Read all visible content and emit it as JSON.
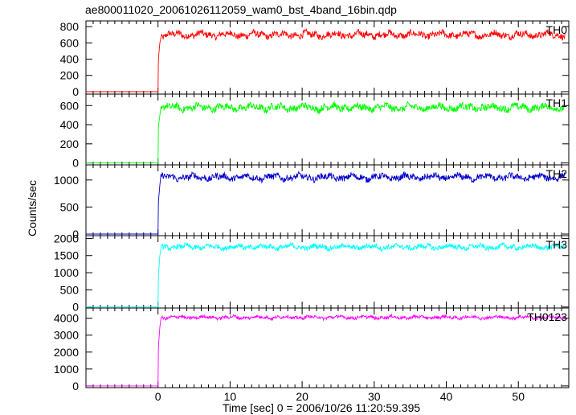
{
  "chart_data": {
    "type": "line",
    "title": "ae800011020_20061026112059_wam0_bst_4band_16bin.qdp",
    "xlabel": "Time [sec] 0 = 2006/10/26 11:20:59.395",
    "ylabel": "Counts/sec",
    "xlim": [
      -10,
      57
    ],
    "xticks": [
      0,
      10,
      20,
      30,
      40,
      50
    ],
    "grid": false,
    "panels": [
      {
        "name": "TH0",
        "color": "#ff0000",
        "ylim": [
          -30,
          870
        ],
        "yticks": [
          0,
          200,
          400,
          600,
          800
        ],
        "pre_level": 0,
        "onset_value": 400,
        "plateau": 700,
        "jitter": 55
      },
      {
        "name": "TH1",
        "color": "#00ff00",
        "ylim": [
          -20,
          720
        ],
        "yticks": [
          0,
          200,
          400,
          600
        ],
        "pre_level": 0,
        "onset_value": 380,
        "plateau": 580,
        "jitter": 50
      },
      {
        "name": "TH2",
        "color": "#0000cc",
        "ylim": [
          -30,
          1280
        ],
        "yticks": [
          0,
          500,
          1000
        ],
        "pre_level": 0,
        "onset_value": 600,
        "plateau": 1050,
        "jitter": 80
      },
      {
        "name": "TH3",
        "color": "#00ffff",
        "ylim": [
          -30,
          2080
        ],
        "yticks": [
          0,
          500,
          1000,
          1500,
          2000
        ],
        "pre_level": 0,
        "onset_value": 900,
        "plateau": 1750,
        "jitter": 100
      },
      {
        "name": "TH0123",
        "color": "#ff00ff",
        "ylim": [
          -100,
          4600
        ],
        "yticks": [
          0,
          1000,
          2000,
          3000,
          4000
        ],
        "pre_level": 0,
        "onset_value": 2300,
        "plateau": 4050,
        "jitter": 130
      }
    ]
  }
}
